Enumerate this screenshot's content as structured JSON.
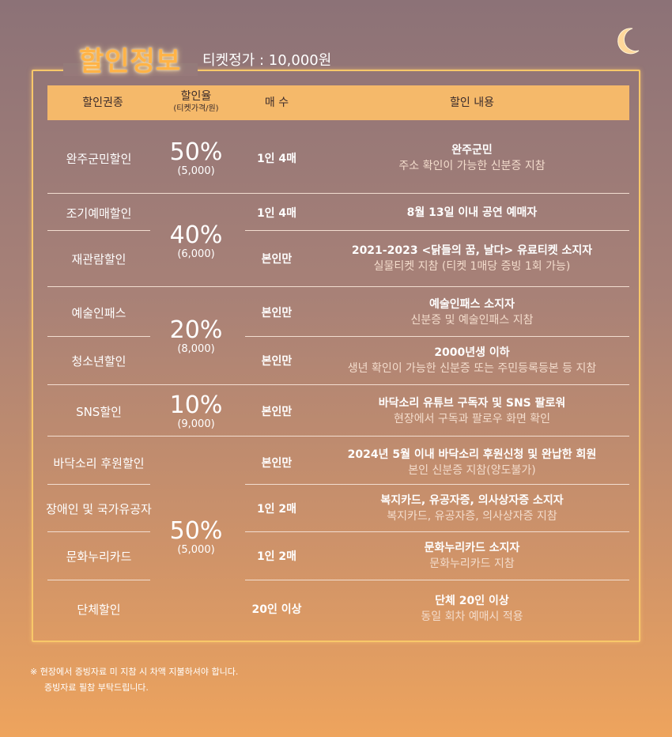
{
  "title": "할인정보",
  "ticket_price": "티켓정가 : 10,000원",
  "header": {
    "col1": "할인권종",
    "col2": "할인율",
    "col2_sub": "(티켓가격/원)",
    "col3": "매 수",
    "col4": "할인 내용"
  },
  "rows": [
    {
      "category": "완주군민할인",
      "qty": "1인 4매",
      "desc1": "완주군민",
      "desc2": "주소 확인이 가능한 신분증 지참"
    },
    {
      "category": "조기예매할인",
      "qty": "1인 4매",
      "desc1": "8월 13일 이내 공연 예매자",
      "desc2": ""
    },
    {
      "category": "재관람할인",
      "qty": "본인만",
      "desc1": "2021-2023 <닭들의 꿈, 날다> 유료티켓 소지자",
      "desc2": "실물티켓 지참 (티켓 1매당 증빙 1회 가능)"
    },
    {
      "category": "예술인패스",
      "qty": "본인만",
      "desc1": "예술인패스 소지자",
      "desc2": "신분증 및 예술인패스 지참"
    },
    {
      "category": "청소년할인",
      "qty": "본인만",
      "desc1": "2000년생 이하",
      "desc2": "생년 확인이 가능한 신분증 또는 주민등록등본 등 지참"
    },
    {
      "category": "SNS할인",
      "qty": "본인만",
      "desc1": "바닥소리 유튜브 구독자 및 SNS 팔로워",
      "desc2": "현장에서 구독과 팔로우 화면 확인"
    },
    {
      "category": "바닥소리 후원할인",
      "qty": "본인만",
      "desc1": "2024년 5월 이내 바닥소리 후원신청 및 완납한 회원",
      "desc2": "본인 신분증 지참(양도불가)"
    },
    {
      "category": "장애인 및 국가유공자",
      "qty": "1인 2매",
      "desc1": "복지카드, 유공자증, 의사상자증 소지자",
      "desc2": "복지카드, 유공자증, 의사상자증 지참"
    },
    {
      "category": "문화누리카드",
      "qty": "1인 2매",
      "desc1": "문화누리카드 소지자",
      "desc2": "문화누리카드 지참"
    },
    {
      "category": "단체할인",
      "qty": "20인 이상",
      "desc1": "단체 20인 이상",
      "desc2": "동일 회차 예매시 적용"
    }
  ],
  "rates": [
    {
      "pct": "50%",
      "price": "(5,000)"
    },
    {
      "pct": "40%",
      "price": "(6,000)"
    },
    {
      "pct": "20%",
      "price": "(8,000)"
    },
    {
      "pct": "10%",
      "price": "(9,000)"
    },
    {
      "pct": "50%",
      "price": "(5,000)"
    }
  ],
  "note_line1": "※ 현장에서 증빙자료 미 지참 시 차액 지불하셔야 합니다.",
  "note_line2": "증빙자료 필참 부탁드립니다.",
  "icons": [
    "moon-icon"
  ],
  "colors": {
    "title": "#ffb347",
    "header_bg": "#f5b96a",
    "frame": "#f8c86a"
  }
}
